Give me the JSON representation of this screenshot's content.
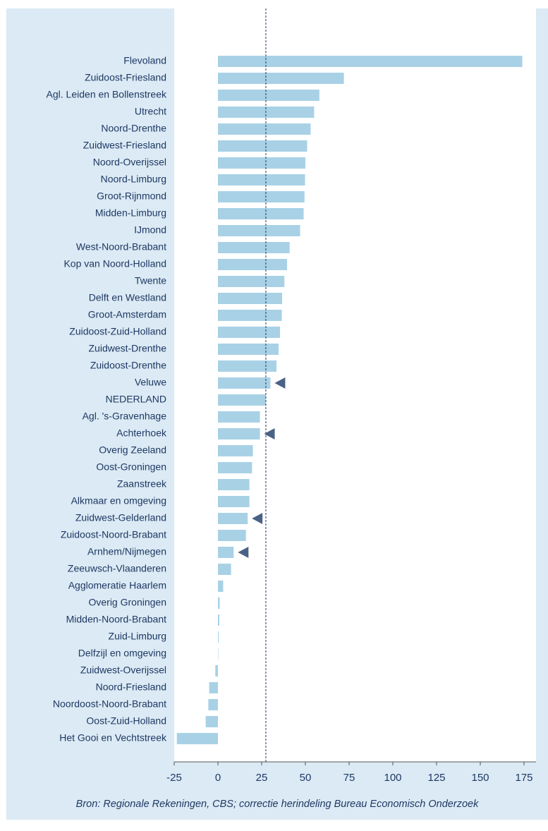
{
  "chart_data": {
    "type": "barh",
    "categories": [
      "Flevoland",
      "Zuidoost-Friesland",
      "Agl. Leiden en Bollenstreek",
      "Utrecht",
      "Noord-Drenthe",
      "Zuidwest-Friesland",
      "Noord-Overijssel",
      "Noord-Limburg",
      "Groot-Rijnmond",
      "Midden-Limburg",
      "IJmond",
      "West-Noord-Brabant",
      "Kop van Noord-Holland",
      "Twente",
      "Delft en Westland",
      "Groot-Amsterdam",
      "Zuidoost-Zuid-Holland",
      "Zuidwest-Drenthe",
      "Zuidoost-Drenthe",
      "Veluwe",
      "NEDERLAND",
      "Agl. 's-Gravenhage",
      "Achterhoek",
      "Overig Zeeland",
      "Oost-Groningen",
      "Zaanstreek",
      "Alkmaar en omgeving",
      "Zuidwest-Gelderland",
      "Zuidoost-Noord-Brabant",
      "Arnhem/Nijmegen",
      "Zeeuwsch-Vlaanderen",
      "Agglomeratie Haarlem",
      "Overig Groningen",
      "Midden-Noord-Brabant",
      "Zuid-Limburg",
      "Delfzijl en omgeving",
      "Zuidwest-Overijssel",
      "Noord-Friesland",
      "Noordoost-Noord-Brabant",
      "Oost-Zuid-Holland",
      "Het Gooi en Vechtstreek"
    ],
    "values": [
      174,
      72,
      58,
      55,
      53,
      51,
      50,
      49.8,
      49.5,
      49,
      47,
      41,
      39.5,
      38,
      36.7,
      36.5,
      35.5,
      34.7,
      33.5,
      30,
      27.4,
      24,
      24,
      20,
      19.5,
      18,
      18,
      17,
      16,
      9,
      7.5,
      3,
      1,
      0.8,
      0.4,
      0.2,
      -1.5,
      -5,
      -5.5,
      -7,
      -23.5
    ],
    "color": "#a8d1e6",
    "highlight": [
      19,
      22,
      27,
      29
    ],
    "highlight_color": "#4a6285",
    "reference_line": 27.4,
    "xlim": [
      -25,
      180
    ],
    "xticks": [
      -25,
      0,
      25,
      50,
      75,
      100,
      125,
      150,
      175
    ],
    "source": "Bron: Regionale Rekeningen, CBS; correctie herindeling Bureau Economisch Onderzoek"
  }
}
